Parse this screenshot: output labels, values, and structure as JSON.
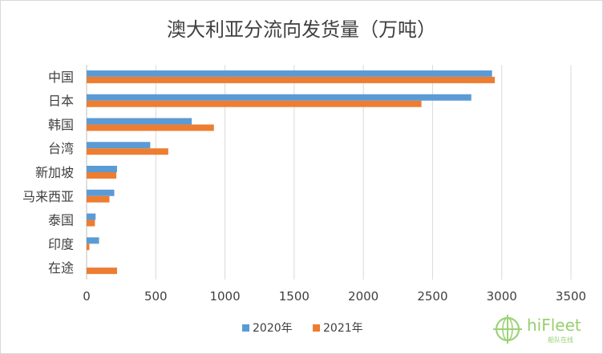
{
  "chart_data": {
    "type": "bar",
    "orientation": "horizontal",
    "title": "澳大利亚分流向发货量（万吨）",
    "categories": [
      "中国",
      "日本",
      "韩国",
      "台湾",
      "新加坡",
      "马来西亚",
      "泰国",
      "印度",
      "在途"
    ],
    "series": [
      {
        "name": "2020年",
        "color": "#5b9bd5",
        "values": [
          2930,
          2780,
          760,
          460,
          220,
          200,
          65,
          90,
          0
        ]
      },
      {
        "name": "2021年",
        "color": "#ed7d31",
        "values": [
          2950,
          2420,
          920,
          590,
          215,
          165,
          60,
          20,
          220
        ]
      }
    ],
    "xlim": [
      0,
      3500
    ],
    "xticks": [
      0,
      500,
      1000,
      1500,
      2000,
      2500,
      3000,
      3500
    ],
    "grid": true,
    "legend_position": "bottom"
  },
  "watermark": {
    "brand": "hiFleet",
    "tagline": "船队在线",
    "color": "#7cc44a"
  }
}
